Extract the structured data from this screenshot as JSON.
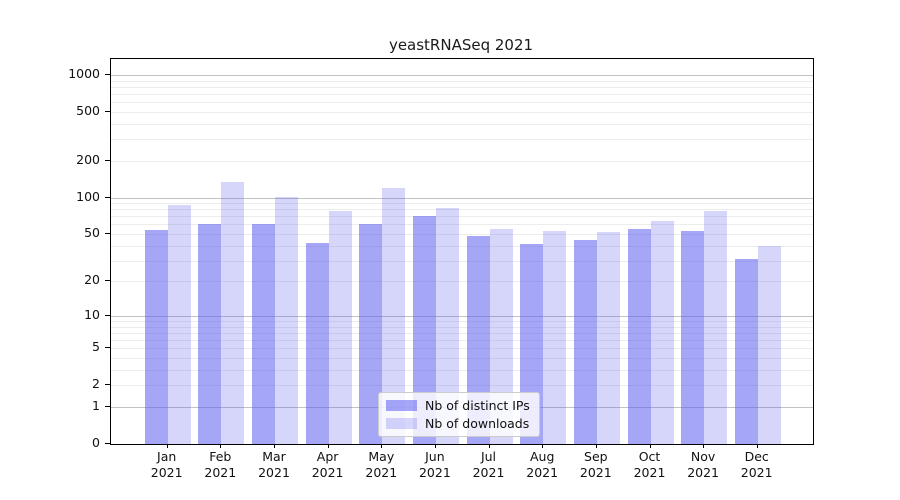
{
  "title": "yeastRNASeq 2021",
  "legend": {
    "items": [
      {
        "label": "Nb of distinct IPs"
      },
      {
        "label": "Nb of downloads"
      }
    ]
  },
  "chart_data": {
    "type": "bar",
    "title": "yeastRNASeq 2021",
    "categories": [
      "Jan 2021",
      "Feb 2021",
      "Mar 2021",
      "Apr 2021",
      "May 2021",
      "Jun 2021",
      "Jul 2021",
      "Aug 2021",
      "Sep 2021",
      "Oct 2021",
      "Nov 2021",
      "Dec 2021"
    ],
    "series": [
      {
        "name": "Nb of distinct IPs",
        "color": "#5d5dee",
        "alpha": 0.55,
        "values": [
          54,
          61,
          60,
          42,
          61,
          70,
          48,
          41,
          45,
          55,
          53,
          31
        ]
      },
      {
        "name": "Nb of downloads",
        "color": "#5d5dee",
        "alpha": 0.25,
        "values": [
          87,
          135,
          101,
          78,
          120,
          82,
          55,
          53,
          52,
          64,
          77,
          40
        ]
      }
    ],
    "scale": "log1p",
    "yticks": [
      0,
      1,
      2,
      5,
      10,
      20,
      50,
      100,
      200,
      500,
      1000
    ],
    "ylim": [
      0,
      1350
    ],
    "grid": true,
    "legend_position": "lower center"
  },
  "colors": {
    "major_grid": "#c2c2c2",
    "minor_grid": "#ececec",
    "axis": "#000000",
    "background": "#ffffff"
  }
}
